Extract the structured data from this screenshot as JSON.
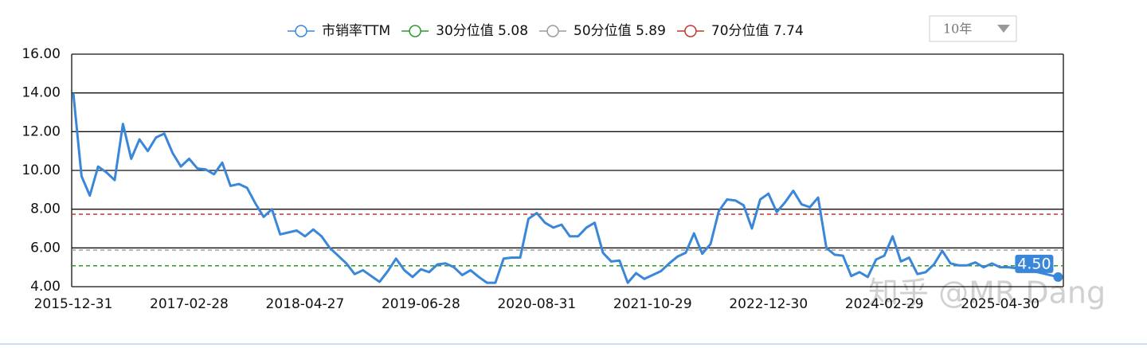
{
  "chart_data": {
    "type": "line",
    "categories": [
      "2015-12-31",
      null,
      null,
      null,
      null,
      null,
      null,
      null,
      null,
      null,
      null,
      null,
      null,
      null,
      "2017-02-28",
      null,
      null,
      null,
      null,
      null,
      null,
      null,
      null,
      null,
      null,
      null,
      null,
      null,
      "2018-04-27",
      null,
      null,
      null,
      null,
      null,
      null,
      null,
      null,
      null,
      null,
      null,
      null,
      null,
      "2019-06-28",
      null,
      null,
      null,
      null,
      null,
      null,
      null,
      null,
      null,
      null,
      null,
      null,
      null,
      "2020-08-31",
      null,
      null,
      null,
      null,
      null,
      null,
      null,
      null,
      null,
      null,
      null,
      null,
      null,
      "2021-10-29",
      null,
      null,
      null,
      null,
      null,
      null,
      null,
      null,
      null,
      null,
      null,
      null,
      null,
      "2022-12-30",
      null,
      null,
      null,
      null,
      null,
      null,
      null,
      null,
      null,
      null,
      null,
      null,
      null,
      "2024-02-29",
      null,
      null,
      null,
      null,
      null,
      null,
      null,
      null,
      null,
      null,
      null,
      null,
      null,
      "2025-04-30",
      null,
      null,
      null,
      null,
      null,
      null,
      null
    ],
    "series": [
      {
        "name": "市销率TTM",
        "color": "#3a86d8",
        "end_label": "4.50",
        "values": [
          14.0,
          9.7,
          8.7,
          10.2,
          9.9,
          9.5,
          12.4,
          10.6,
          11.6,
          11.0,
          11.7,
          11.9,
          10.9,
          10.2,
          10.6,
          10.1,
          10.05,
          9.8,
          10.4,
          9.2,
          9.3,
          9.1,
          8.3,
          7.6,
          8.0,
          6.7,
          6.8,
          6.9,
          6.6,
          6.95,
          6.6,
          6.0,
          5.6,
          5.2,
          4.65,
          4.85,
          4.55,
          4.25,
          4.8,
          5.45,
          4.85,
          4.5,
          4.9,
          4.75,
          5.15,
          5.2,
          5.0,
          4.6,
          4.85,
          4.5,
          4.2,
          4.2,
          5.45,
          5.5,
          5.5,
          7.5,
          7.8,
          7.3,
          7.05,
          7.2,
          6.6,
          6.6,
          7.05,
          7.3,
          5.75,
          5.3,
          5.35,
          4.2,
          4.7,
          4.4,
          4.6,
          4.8,
          5.2,
          5.55,
          5.75,
          6.75,
          5.7,
          6.2,
          7.9,
          8.5,
          8.45,
          8.2,
          7.0,
          8.5,
          8.8,
          7.85,
          8.35,
          8.95,
          8.25,
          8.1,
          8.6,
          6.0,
          5.65,
          5.6,
          4.55,
          4.75,
          4.5,
          5.4,
          5.6,
          6.6,
          5.3,
          5.5,
          4.65,
          4.75,
          5.15,
          5.85,
          5.2,
          5.1,
          5.1,
          5.25,
          5.0,
          5.2,
          5.0,
          5.0,
          4.95,
          4.85,
          4.8,
          4.7,
          4.6,
          4.5
        ]
      }
    ],
    "reference_lines": [
      {
        "name": "30分位值 5.08",
        "color": "#2a9a2a",
        "value": 5.08
      },
      {
        "name": "50分位值 5.89",
        "color": "#9a9a9a",
        "value": 5.89
      },
      {
        "name": "70分位值 7.74",
        "color": "#c0392b",
        "value": 7.74
      }
    ],
    "ylim": [
      4,
      16
    ],
    "yticks": [
      {
        "value": 4,
        "label": "4.00"
      },
      {
        "value": 6,
        "label": "6.00"
      },
      {
        "value": 8,
        "label": "8.00"
      },
      {
        "value": 10,
        "label": "10.00"
      },
      {
        "value": 12,
        "label": "12.00"
      },
      {
        "value": 14,
        "label": "14.00"
      },
      {
        "value": 16,
        "label": "16.00"
      }
    ],
    "grid": true
  },
  "range_selector": "10年",
  "watermark": "知乎 @MR Dang"
}
